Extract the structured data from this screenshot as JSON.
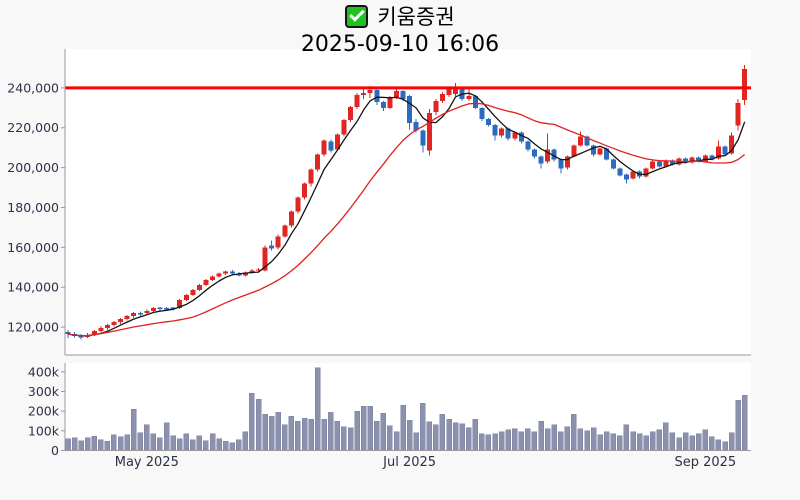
{
  "title": {
    "checkbox_icon": "green-checked-checkbox",
    "stock_name": "키움증권",
    "datetime": "2025-09-10 16:06"
  },
  "colors": {
    "page_bg": "#f8f8f9",
    "pane_bg": "#ffffff",
    "axis_line": "#9a9a9a",
    "tick_text": "#2f2f48",
    "title_text": "#000000",
    "checkbox_green": "#1fc31f"
  },
  "chart_data": {
    "type": "candlestick",
    "title": "키움증권",
    "legend": "none",
    "grid": false,
    "panes": [
      "price",
      "volume"
    ],
    "columns": [
      "open",
      "high",
      "low",
      "close",
      "volume"
    ],
    "price_axis": {
      "ylim": [
        106000,
        259500
      ],
      "ticks": [
        {
          "value": 240000,
          "label": "240,000"
        },
        {
          "value": 220000,
          "label": "220,000"
        },
        {
          "value": 200000,
          "label": "200,000"
        },
        {
          "value": 180000,
          "label": "180,000"
        },
        {
          "value": 160000,
          "label": "160,000"
        },
        {
          "value": 140000,
          "label": "140,000"
        },
        {
          "value": 120000,
          "label": "120,000"
        }
      ]
    },
    "volume_axis": {
      "ylim": [
        0,
        445000
      ],
      "ticks": [
        {
          "value": 400000,
          "label": "400k"
        },
        {
          "value": 300000,
          "label": "300k"
        },
        {
          "value": 200000,
          "label": "200k"
        },
        {
          "value": 100000,
          "label": "100k"
        },
        {
          "value": 0,
          "label": "0"
        }
      ]
    },
    "x_ticks": [
      {
        "index": 12,
        "label": "May 2025"
      },
      {
        "index": 52,
        "label": "Jul 2025"
      },
      {
        "index": 97,
        "label": "Sep 2025"
      }
    ],
    "overlays": {
      "resistance_line": {
        "value": 240000,
        "color": "#ff0000",
        "width": 3
      },
      "ma_fast": {
        "period": 5,
        "color": "#141414",
        "width": 1.3
      },
      "ma_slow": {
        "period": 20,
        "color": "#e02020",
        "width": 1.3
      }
    },
    "style": {
      "up_color": "#e02622",
      "down_color": "#2e6bc0",
      "volume_bar_color": "#8c92ad",
      "volume_bar_edge": "#7b81a0"
    },
    "candles": [
      [
        117500,
        118500,
        114500,
        116500,
        60000
      ],
      [
        116500,
        117500,
        114800,
        115500,
        65000
      ],
      [
        115500,
        116500,
        113800,
        115000,
        50000
      ],
      [
        115000,
        117000,
        114500,
        116000,
        65000
      ],
      [
        116000,
        118500,
        115500,
        118000,
        72000
      ],
      [
        118000,
        120500,
        117200,
        119500,
        55000
      ],
      [
        119500,
        121500,
        118500,
        121000,
        48000
      ],
      [
        121000,
        123000,
        120200,
        122500,
        80000
      ],
      [
        122500,
        124500,
        121500,
        124000,
        70000
      ],
      [
        124000,
        126000,
        123200,
        125500,
        80000
      ],
      [
        125500,
        127500,
        124500,
        127000,
        210000
      ],
      [
        127000,
        127800,
        125500,
        126500,
        90000
      ],
      [
        127000,
        128800,
        126200,
        128000,
        130000
      ],
      [
        128000,
        130000,
        127500,
        129500,
        85000
      ],
      [
        129800,
        130200,
        127500,
        129000,
        65000
      ],
      [
        129500,
        130000,
        128000,
        129000,
        140000
      ],
      [
        129800,
        130200,
        128400,
        129400,
        75000
      ],
      [
        129500,
        134000,
        129000,
        133500,
        60000
      ],
      [
        133500,
        136500,
        133000,
        136000,
        85000
      ],
      [
        136000,
        139000,
        135500,
        138500,
        55000
      ],
      [
        138500,
        141500,
        138000,
        141000,
        75000
      ],
      [
        141000,
        144000,
        140500,
        143500,
        50000
      ],
      [
        143500,
        146000,
        143000,
        145500,
        85000
      ],
      [
        145500,
        147500,
        145000,
        147000,
        60000
      ],
      [
        147000,
        148500,
        146200,
        148000,
        48000
      ],
      [
        148000,
        148600,
        146500,
        147000,
        40000
      ],
      [
        147000,
        147600,
        145500,
        146000,
        55000
      ],
      [
        146000,
        148000,
        145500,
        147500,
        95000
      ],
      [
        147500,
        149200,
        147000,
        148500,
        290000
      ],
      [
        148500,
        149600,
        147500,
        149000,
        260000
      ],
      [
        148500,
        161000,
        148000,
        160000,
        185000
      ],
      [
        161000,
        163500,
        158500,
        159500,
        175000
      ],
      [
        160000,
        166500,
        159000,
        165500,
        195000
      ],
      [
        165500,
        171500,
        165000,
        171000,
        130000
      ],
      [
        171000,
        178500,
        170000,
        178000,
        175000
      ],
      [
        178000,
        185500,
        177000,
        185000,
        150000
      ],
      [
        185000,
        192500,
        184000,
        192000,
        165000
      ],
      [
        192000,
        199500,
        190500,
        199000,
        160000
      ],
      [
        199000,
        207000,
        198000,
        206500,
        420000
      ],
      [
        206500,
        214000,
        205500,
        213500,
        160000
      ],
      [
        213000,
        214000,
        207500,
        208500,
        195000
      ],
      [
        209000,
        217000,
        208500,
        216500,
        150000
      ],
      [
        216500,
        224500,
        215500,
        224000,
        120000
      ],
      [
        224000,
        231000,
        223000,
        230500,
        115000
      ],
      [
        230500,
        237500,
        229500,
        236500,
        200000
      ],
      [
        236500,
        240500,
        234500,
        237500,
        225000
      ],
      [
        237500,
        241000,
        235000,
        239000,
        225000
      ],
      [
        239000,
        239500,
        231500,
        233000,
        150000
      ],
      [
        233000,
        233500,
        228500,
        230000,
        190000
      ],
      [
        230000,
        236000,
        229500,
        235500,
        125000
      ],
      [
        235500,
        240000,
        234500,
        238500,
        95000
      ],
      [
        238500,
        239000,
        233500,
        234500,
        230000
      ],
      [
        236000,
        236500,
        219000,
        222500,
        155000
      ],
      [
        223000,
        224500,
        217500,
        218500,
        90000
      ],
      [
        218500,
        219000,
        207500,
        211000,
        240000
      ],
      [
        208500,
        229500,
        206000,
        227500,
        145000
      ],
      [
        228000,
        234500,
        226500,
        233500,
        130000
      ],
      [
        233500,
        238000,
        232500,
        237000,
        185000
      ],
      [
        236500,
        240500,
        235500,
        239500,
        160000
      ],
      [
        237000,
        242500,
        236000,
        240000,
        140000
      ],
      [
        240000,
        240500,
        233500,
        234500,
        135000
      ],
      [
        234500,
        239500,
        233500,
        236000,
        115000
      ],
      [
        236000,
        236500,
        229500,
        230000,
        160000
      ],
      [
        230000,
        230500,
        223500,
        224500,
        85000
      ],
      [
        224500,
        225000,
        220500,
        221500,
        80000
      ],
      [
        221500,
        222000,
        213500,
        216000,
        85000
      ],
      [
        216000,
        220000,
        215000,
        219500,
        95000
      ],
      [
        219500,
        220000,
        213500,
        214500,
        105000
      ],
      [
        214500,
        218000,
        213500,
        217500,
        110000
      ],
      [
        217500,
        218000,
        212000,
        213000,
        95000
      ],
      [
        213000,
        213500,
        208000,
        209000,
        110000
      ],
      [
        209000,
        209500,
        204500,
        205500,
        95000
      ],
      [
        205500,
        206000,
        199500,
        202000,
        150000
      ],
      [
        203000,
        217000,
        202000,
        209000,
        110000
      ],
      [
        209000,
        209500,
        203000,
        204000,
        130000
      ],
      [
        204000,
        204500,
        197000,
        199500,
        95000
      ],
      [
        200000,
        206000,
        199000,
        205500,
        120000
      ],
      [
        205500,
        211500,
        205000,
        211000,
        185000
      ],
      [
        211000,
        218000,
        210500,
        215500,
        110000
      ],
      [
        215500,
        216000,
        210500,
        211000,
        100000
      ],
      [
        211000,
        211500,
        205500,
        206500,
        115000
      ],
      [
        206500,
        210000,
        206000,
        209500,
        80000
      ],
      [
        209500,
        210000,
        203500,
        204000,
        95000
      ],
      [
        204000,
        204500,
        199000,
        199500,
        85000
      ],
      [
        199500,
        200000,
        195500,
        196000,
        75000
      ],
      [
        196500,
        197000,
        192000,
        194000,
        130000
      ],
      [
        194500,
        198500,
        194000,
        198000,
        95000
      ],
      [
        198000,
        198500,
        194500,
        195500,
        85000
      ],
      [
        195500,
        200000,
        195000,
        199500,
        75000
      ],
      [
        199500,
        203500,
        199000,
        203000,
        95000
      ],
      [
        203000,
        203500,
        200000,
        200500,
        105000
      ],
      [
        200500,
        204000,
        200000,
        203500,
        140000
      ],
      [
        203500,
        204000,
        201000,
        201500,
        90000
      ],
      [
        201500,
        205000,
        201000,
        204500,
        65000
      ],
      [
        204500,
        205000,
        202000,
        202500,
        90000
      ],
      [
        202500,
        205500,
        202000,
        205000,
        75000
      ],
      [
        205000,
        205500,
        202500,
        203000,
        85000
      ],
      [
        203000,
        206500,
        202500,
        206000,
        105000
      ],
      [
        206000,
        206500,
        203500,
        204000,
        70000
      ],
      [
        204500,
        213500,
        204000,
        210500,
        55000
      ],
      [
        210500,
        211000,
        206000,
        206500,
        45000
      ],
      [
        207000,
        217500,
        206500,
        216000,
        90000
      ],
      [
        221000,
        234500,
        218500,
        232500,
        255000
      ],
      [
        234000,
        251500,
        231500,
        249500,
        280000
      ]
    ]
  }
}
